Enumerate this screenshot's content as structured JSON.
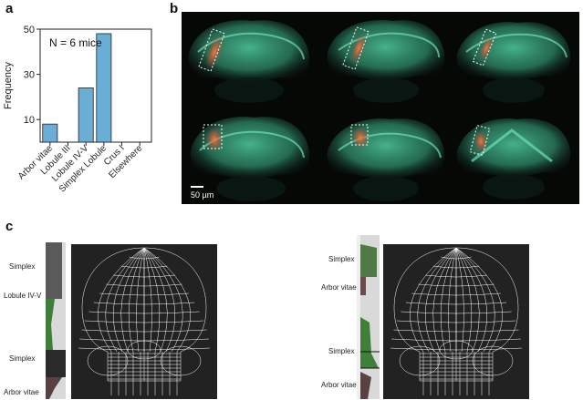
{
  "panels": {
    "a": "a",
    "b": "b",
    "c": "c"
  },
  "chart_data": {
    "type": "bar",
    "categories": [
      "Arbor vitae",
      "Lobule III",
      "Lobule IV-V",
      "Simplex Lobule",
      "Crus I",
      "Elsewhere"
    ],
    "values": [
      8,
      0,
      24,
      48,
      0,
      0
    ],
    "ylabel": "Frequency",
    "yticks": [
      10,
      30,
      50
    ],
    "ylim": [
      0,
      50
    ],
    "annotation": "N = 6 mice",
    "bar_color": "#6aaed6",
    "grid": false
  },
  "panel_b": {
    "scale_label": "50 µm",
    "background_color": "#060806",
    "tissue_color": "#3fae86",
    "label_color": "#e0503a"
  },
  "panel_c": {
    "left": {
      "labels": [
        "Simplex",
        "Lobule IV-V",
        "Simplex",
        "Arbor vitae"
      ]
    },
    "right": {
      "labels": [
        "Simplex",
        "Arbor vitae",
        "Simplex",
        "Arbor vitae"
      ]
    }
  }
}
